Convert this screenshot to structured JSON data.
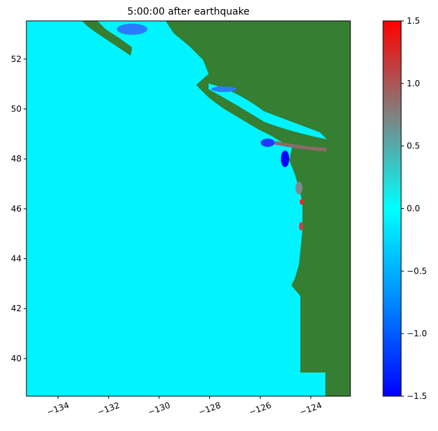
{
  "chart_data": {
    "type": "map",
    "title": "5:00:00 after earthquake",
    "xlim": [
      -135.25,
      -122.43
    ],
    "ylim": [
      38.49,
      53.53
    ],
    "xticks": [
      {
        "value": -134,
        "label": "−134"
      },
      {
        "value": -132,
        "label": "−132"
      },
      {
        "value": -130,
        "label": "−130"
      },
      {
        "value": -128,
        "label": "−128"
      },
      {
        "value": -126,
        "label": "−126"
      },
      {
        "value": -124,
        "label": "−124"
      }
    ],
    "yticks": [
      40,
      42,
      44,
      46,
      48,
      50,
      52
    ],
    "ocean_color": "#00f4ff",
    "land_color": "#357e32",
    "colorbar": {
      "lim": [
        -1.5,
        1.5
      ],
      "colors": [
        "#0000ff",
        "#0088ff",
        "#00ffff",
        "#808080",
        "#ff0000"
      ],
      "ticks": [
        {
          "value": -1.5,
          "label": "−1.5"
        },
        {
          "value": -1,
          "label": "−1.0"
        },
        {
          "value": -0.5,
          "label": "−0.5"
        },
        {
          "value": 0,
          "label": "0.0"
        },
        0.5,
        {
          "value": 1,
          "label": "1.0"
        },
        1.5
      ]
    }
  }
}
